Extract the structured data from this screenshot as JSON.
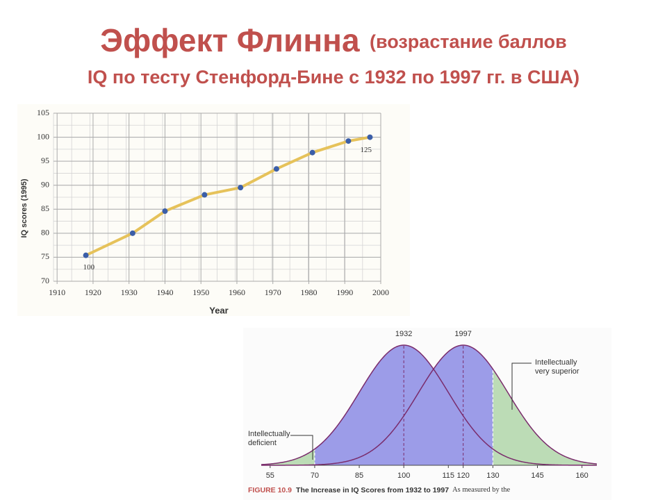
{
  "title": {
    "main": "Эффект Флинна",
    "sub1": "(возрастание баллов",
    "sub2": "IQ по тесту Стенфорд-Бине с 1932 по 1997 гг. в США)"
  },
  "chart_data": [
    {
      "type": "line",
      "xlabel": "Year",
      "ylabel": "IQ scores (1995)",
      "x": [
        1918,
        1931,
        1940,
        1951,
        1961,
        1971,
        1981,
        1991,
        1997
      ],
      "series": [
        {
          "color": "#e6c25a",
          "marker_color": "#3b5ea8",
          "values": [
            75.4,
            80,
            84.6,
            88,
            89.5,
            93.4,
            96.8,
            99.2,
            100
          ]
        }
      ],
      "annotations": [
        "100",
        "125"
      ],
      "xlim": [
        1909,
        2000
      ],
      "xticks": [
        1910,
        1920,
        1930,
        1940,
        1950,
        1960,
        1970,
        1980,
        1990,
        2000
      ],
      "ylim": [
        70,
        105
      ],
      "yticks": [
        70,
        75,
        80,
        85,
        90,
        95,
        100,
        105
      ],
      "grid": true
    },
    {
      "type": "normal",
      "series": [
        {
          "name": "1932",
          "mean": 100,
          "sd": 15
        },
        {
          "name": "1997",
          "mean": 120,
          "sd": 15
        }
      ],
      "shade_below": 70,
      "shade_above": 130,
      "fill_color": "#9c9ce8",
      "tail_color": "#bcdcb6",
      "line_color": "#7a2c6c",
      "annotations": [
        [
          "Intellectually",
          "deficient"
        ],
        [
          "Intellectually",
          "very superior"
        ]
      ],
      "xlim": [
        52,
        165
      ],
      "xticks": [
        55,
        70,
        85,
        100,
        115,
        120,
        130,
        145,
        160
      ],
      "caption": {
        "figure": "FIGURE 10.9",
        "title": "The Increase in IQ Scores from 1932 to 1997",
        "text": "As measured by the"
      }
    }
  ]
}
